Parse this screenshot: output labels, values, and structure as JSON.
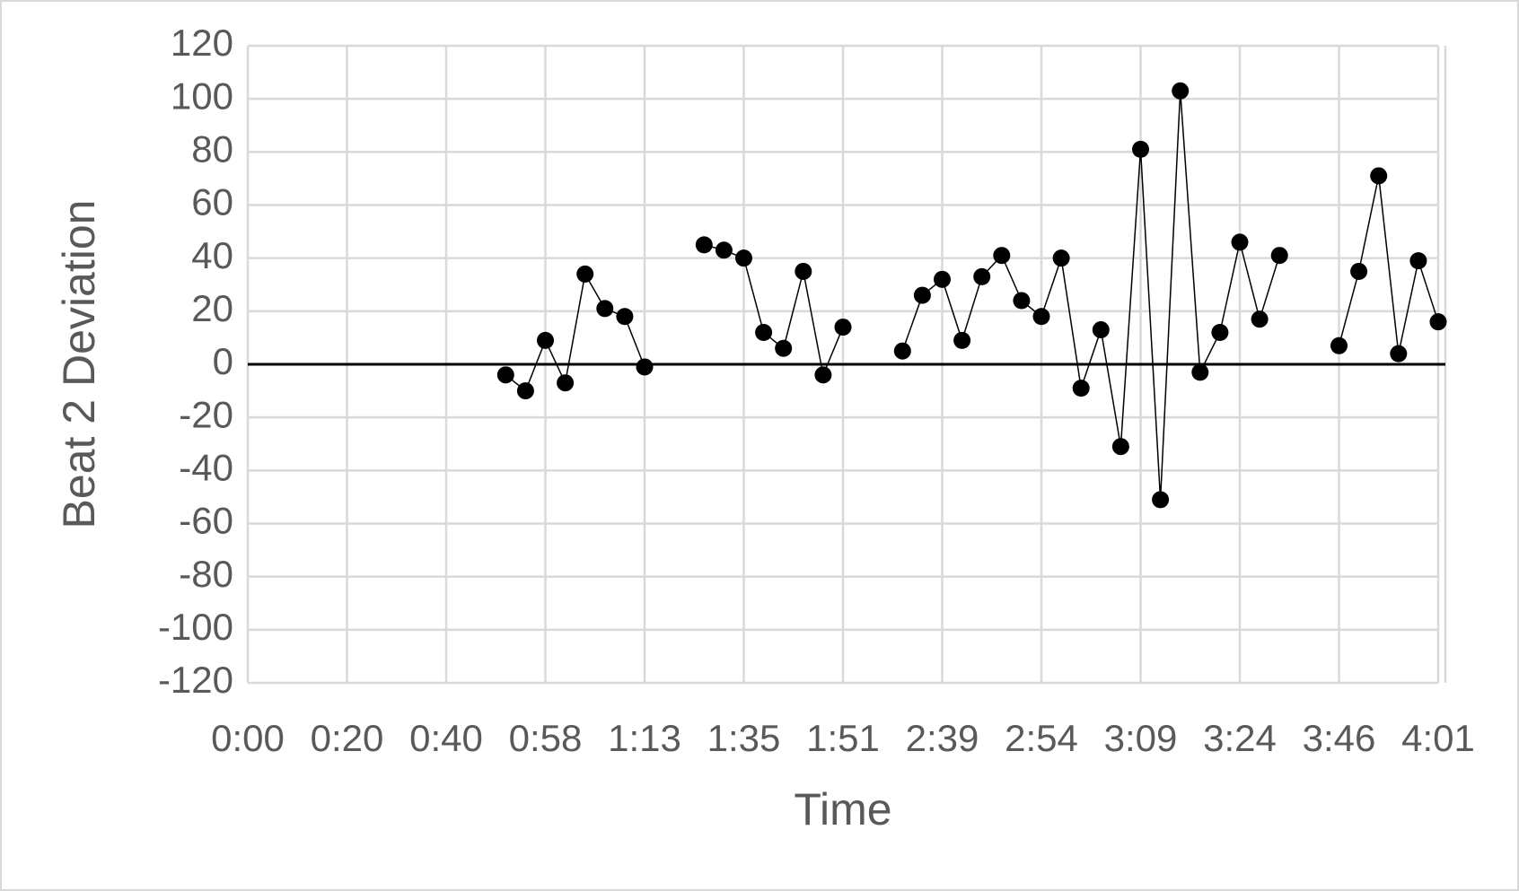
{
  "chart_data": {
    "type": "line",
    "x_axis_title": "Time",
    "y_axis_title": "Beat 2 Deviation",
    "categories": [
      "0:00",
      null,
      null,
      null,
      null,
      "0:20",
      null,
      null,
      null,
      null,
      "0:40",
      null,
      null,
      null,
      null,
      "0:58",
      null,
      null,
      null,
      null,
      "1:13",
      null,
      null,
      null,
      null,
      "1:35",
      null,
      null,
      null,
      null,
      "1:51",
      null,
      null,
      null,
      null,
      "2:39",
      null,
      null,
      null,
      null,
      "2:54",
      null,
      null,
      null,
      null,
      "3:09",
      null,
      null,
      null,
      null,
      "3:24",
      null,
      null,
      null,
      null,
      "3:46",
      null,
      null,
      null,
      null,
      "4:01"
    ],
    "series": [
      {
        "color": "#000000",
        "values": [
          null,
          null,
          null,
          null,
          null,
          null,
          null,
          null,
          null,
          null,
          null,
          null,
          null,
          -4,
          -10,
          9,
          -7,
          34,
          21,
          18,
          -1,
          null,
          null,
          45,
          43,
          40,
          12,
          6,
          35,
          -4,
          14,
          null,
          null,
          5,
          26,
          32,
          9,
          33,
          41,
          24,
          18,
          40,
          -9,
          13,
          -31,
          81,
          -51,
          103,
          -3,
          12,
          46,
          17,
          41,
          null,
          null,
          7,
          35,
          71,
          4,
          39,
          16
        ]
      }
    ],
    "ylim": [
      -120,
      120
    ],
    "yticks": [
      -120,
      -100,
      -80,
      -60,
      -40,
      -20,
      0,
      20,
      40,
      60,
      80,
      100,
      120
    ],
    "grid": true
  }
}
